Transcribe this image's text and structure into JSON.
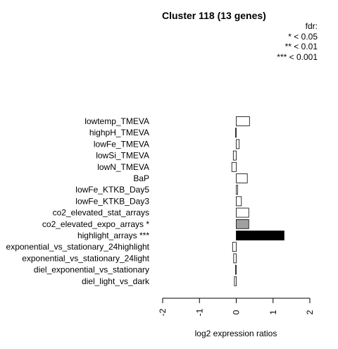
{
  "chart_data": {
    "type": "bar",
    "orientation": "horizontal",
    "title": "Cluster 118 (13 genes)",
    "xlabel": "log2 expression ratios",
    "xlim": [
      -2,
      2
    ],
    "xticks": [
      "-2",
      "-1",
      "0",
      "1",
      "2"
    ],
    "legend": {
      "title": "fdr:",
      "entries": [
        "* < 0.05",
        "** < 0.01",
        "*** < 0.001"
      ]
    },
    "categories": [
      "lowtemp_TMEVA",
      "highpH_TMEVA",
      "lowFe_TMEVA",
      "lowSi_TMEVA",
      "lowN_TMEVA",
      "BaP",
      "lowFe_KTKB_Day5",
      "lowFe_KTKB_Day3",
      "co2_elevated_stat_arrays",
      "co2_elevated_expo_arrays *",
      "highlight_arrays ***",
      "exponential_vs_stationary_24highlight",
      "exponential_vs_stationary_24light",
      "diel_exponential_vs_stationary",
      "diel_light_vs_dark"
    ],
    "values": [
      0.36,
      -0.02,
      0.08,
      -0.08,
      -0.12,
      0.3,
      0.04,
      0.14,
      0.34,
      0.34,
      1.3,
      -0.1,
      -0.07,
      -0.02,
      -0.05
    ],
    "bar_colors": [
      "#ffffff",
      "#ffffff",
      "#ffffff",
      "#ffffff",
      "#ffffff",
      "#ffffff",
      "#ffffff",
      "#ffffff",
      "#ffffff",
      "#a0a0a0",
      "#000000",
      "#ffffff",
      "#ffffff",
      "#ffffff",
      "#ffffff"
    ]
  }
}
